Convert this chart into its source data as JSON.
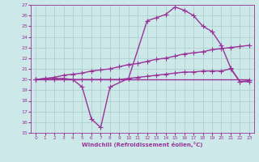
{
  "bg_color": "#cce8e8",
  "grid_color": "#aacccc",
  "line_color": "#993399",
  "xlabel": "Windchill (Refroidissement éolien,°C)",
  "xlim": [
    -0.5,
    23.5
  ],
  "ylim": [
    15,
    27
  ],
  "xticks": [
    0,
    1,
    2,
    3,
    4,
    5,
    6,
    7,
    8,
    9,
    10,
    11,
    12,
    13,
    14,
    15,
    16,
    17,
    18,
    19,
    20,
    21,
    22,
    23
  ],
  "yticks": [
    15,
    16,
    17,
    18,
    19,
    20,
    21,
    22,
    23,
    24,
    25,
    26,
    27
  ],
  "series": [
    {
      "x": [
        0,
        1,
        2,
        3,
        4,
        5,
        6,
        7,
        8,
        10,
        12,
        13,
        14,
        15,
        16,
        17,
        18,
        19,
        20,
        21,
        22,
        23
      ],
      "y": [
        20.0,
        20.1,
        20.1,
        20.1,
        20.0,
        19.3,
        16.3,
        15.5,
        19.3,
        20.1,
        25.5,
        25.8,
        26.1,
        26.8,
        26.5,
        26.0,
        25.0,
        24.5,
        23.2,
        21.1,
        19.8,
        19.8
      ],
      "marker": "+",
      "markersize": 5,
      "linewidth": 1.0
    },
    {
      "x": [
        0,
        1,
        2,
        3,
        4,
        5,
        6,
        7,
        8,
        9,
        10,
        11,
        12,
        13,
        14,
        15,
        16,
        17,
        18,
        19,
        20,
        21,
        22,
        23
      ],
      "y": [
        20.0,
        20.1,
        20.2,
        20.4,
        20.5,
        20.6,
        20.8,
        20.9,
        21.0,
        21.2,
        21.4,
        21.5,
        21.7,
        21.9,
        22.0,
        22.2,
        22.4,
        22.5,
        22.6,
        22.8,
        22.9,
        23.0,
        23.1,
        23.2
      ],
      "marker": "+",
      "markersize": 5,
      "linewidth": 1.0
    },
    {
      "x": [
        0,
        1,
        2,
        3,
        4,
        5,
        6,
        7,
        8,
        9,
        10,
        11,
        12,
        13,
        14,
        15,
        16,
        17,
        18,
        19,
        20,
        21,
        22,
        23
      ],
      "y": [
        20.0,
        20.0,
        20.0,
        20.0,
        20.0,
        20.0,
        20.0,
        20.0,
        20.0,
        20.0,
        20.1,
        20.2,
        20.3,
        20.4,
        20.5,
        20.6,
        20.7,
        20.7,
        20.8,
        20.8,
        20.8,
        21.0,
        19.8,
        19.9
      ],
      "marker": "+",
      "markersize": 5,
      "linewidth": 1.0
    },
    {
      "x": [
        0,
        1,
        2,
        3,
        4,
        5,
        6,
        7,
        8,
        9,
        10,
        11,
        12,
        13,
        14,
        15,
        16,
        17,
        18,
        19,
        20,
        21,
        22,
        23
      ],
      "y": [
        20.0,
        20.0,
        20.0,
        20.0,
        20.0,
        20.0,
        20.0,
        20.0,
        20.0,
        20.0,
        20.0,
        20.0,
        20.0,
        20.0,
        20.0,
        20.0,
        20.0,
        20.0,
        20.0,
        20.0,
        20.0,
        20.0,
        20.0,
        20.0
      ],
      "marker": "",
      "markersize": 0,
      "linewidth": 1.0
    }
  ]
}
